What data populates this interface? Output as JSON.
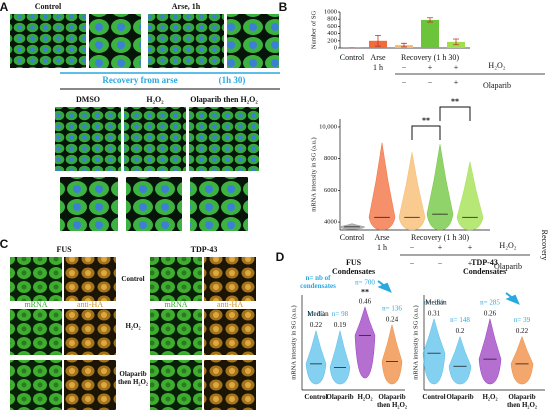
{
  "panel_labels": [
    "A",
    "B",
    "C",
    "D"
  ],
  "panel_a": {
    "top_labels": [
      "Control",
      "Arse, 1h"
    ],
    "recovery_title": "Recovery from arse",
    "recovery_time": "(1h 30)",
    "conditions": [
      "DMSO",
      "H₂O₂",
      "Olaparib then H₂O₂"
    ]
  },
  "panel_c": {
    "proteins": [
      "FUS",
      "TDP-43"
    ],
    "rows": [
      "Control",
      "H₂O₂",
      "Olaparib then H₂O₂"
    ],
    "channels": [
      "mRNA",
      "anti-HA"
    ]
  },
  "chart_data": [
    {
      "type": "bar",
      "ylabel": "Number of SG",
      "categories": [
        "Control",
        "Arse",
        null,
        null,
        null
      ],
      "values": [
        5,
        200,
        80,
        780,
        170
      ],
      "errors": [
        0,
        150,
        50,
        60,
        80
      ],
      "colors": [
        "#f26b3a",
        "#f26b3a",
        "#f7b96b",
        "#6cc43a",
        "#9fe04a"
      ],
      "ylim": [
        0,
        1000
      ],
      "yticks": [
        0,
        200,
        400,
        600,
        800,
        1000
      ],
      "sublabels": {
        "arse_time": "1 h",
        "recovery": "Recovery (1 h 30)",
        "h2o2": "H₂O₂",
        "h2o2_signs": [
          "−",
          "+",
          "+"
        ],
        "olaparib": "Olaparib",
        "olaparib_signs": [
          "−",
          "−",
          "+"
        ]
      }
    },
    {
      "type": "violin",
      "ylabel": "mRNA intensity in SG (a.u.)",
      "categories": [
        "Control",
        "Arse",
        null,
        null,
        null
      ],
      "values": [
        3700,
        4300,
        4300,
        4500,
        4300
      ],
      "min": [
        3550,
        3500,
        3500,
        3500,
        3500
      ],
      "max": [
        3900,
        9000,
        8400,
        8900,
        7800
      ],
      "colors": [
        "#999999",
        "#f26b3a",
        "#f7b96b",
        "#6cc43a",
        "#9fe04a"
      ],
      "ylim": [
        3500,
        10500
      ],
      "yticks": [
        4000,
        6000,
        8000,
        {
          "value": 10000,
          "label": "10,000"
        }
      ],
      "annotations": [
        "**",
        "**"
      ],
      "side_label": "Recovery",
      "sublabels": {
        "arse_time": "1 h",
        "recovery": "Recovery (1 h 30)",
        "h2o2": "H₂O₂",
        "h2o2_signs": [
          "−",
          "+",
          "+"
        ],
        "olaparib": "Olaparib",
        "olaparib_signs": [
          "−",
          "−",
          "+"
        ]
      }
    },
    {
      "type": "violin",
      "title": "FUS",
      "subtitle": "Condensates",
      "ylabel": "mRNA intensity in SG (a.u.)",
      "categories": [
        "Control",
        "Olaparib",
        "H₂O₂",
        "Olaparib then H₂O₂"
      ],
      "values": [
        0.22,
        0.19,
        0.46,
        0.24
      ],
      "min": [
        0.05,
        0.05,
        0.1,
        0.05
      ],
      "max": [
        0.5,
        0.5,
        0.7,
        0.55
      ],
      "counts": [
        83,
        98,
        700,
        136
      ],
      "count_labels": [
        "n= 83",
        "n= 98",
        "n= 700",
        "n= 136"
      ],
      "colors": [
        "#5bc0eb",
        "#5bc0eb",
        "#9b3fc1",
        "#f08a3c"
      ],
      "ylim": [
        0,
        0.8
      ],
      "note": "n= nb of condensates",
      "median_label": "Median",
      "significance": "**"
    },
    {
      "type": "violin",
      "title": "TDP-43",
      "subtitle": "Condensates",
      "ylabel": "mRNA intensity in SG (a.u.)",
      "categories": [
        "Control",
        "Olaparib",
        "H₂O₂",
        "Olaparib then H₂O₂"
      ],
      "values": [
        0.31,
        0.2,
        0.26,
        0.22
      ],
      "min": [
        0.05,
        0.05,
        0.05,
        0.05
      ],
      "max": [
        0.6,
        0.45,
        0.6,
        0.45
      ],
      "counts": [
        180,
        148,
        285,
        39
      ],
      "count_labels": [
        "n= 180",
        "n= 148",
        "n= 285",
        "n= 39"
      ],
      "colors": [
        "#5bc0eb",
        "#5bc0eb",
        "#9b3fc1",
        "#f08a3c"
      ],
      "ylim": [
        0,
        0.8
      ],
      "median_label": "Median"
    }
  ]
}
